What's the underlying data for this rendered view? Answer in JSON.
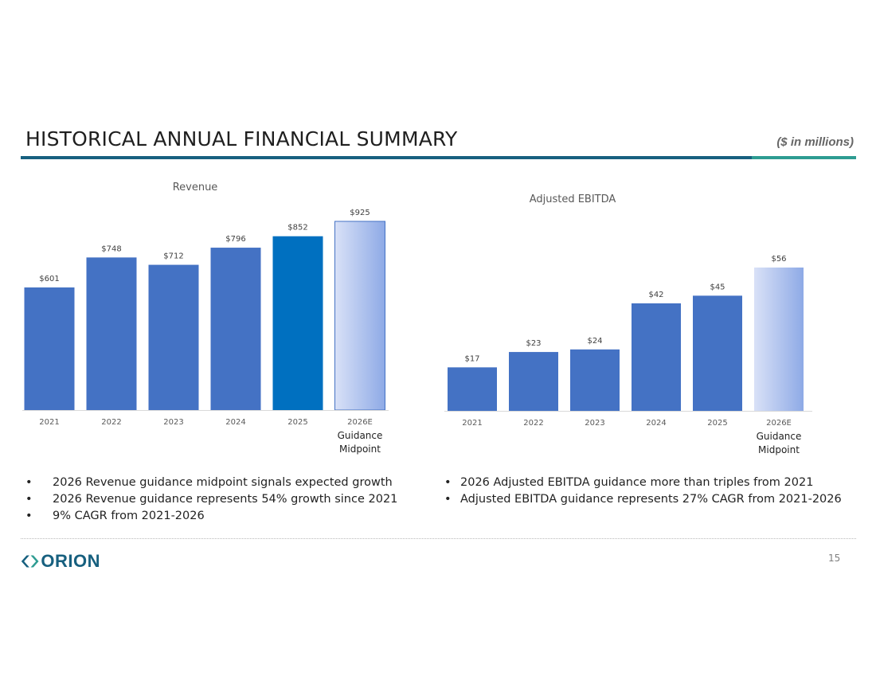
{
  "slide": {
    "title": "HISTORICAL ANNUAL FINANCIAL SUMMARY",
    "units_note": "($ in millions)",
    "page_number": "15",
    "logo_text": "ORION"
  },
  "colors": {
    "bar": "#4472c4",
    "highlight_bar": "#0070c0",
    "guidance_gradient_start": "#d9e1f7",
    "guidance_gradient_end": "#8eaae6",
    "title_rule": "#17607f",
    "accent_rule": "#2e9c92"
  },
  "chart_data": [
    {
      "type": "bar",
      "title": "Revenue",
      "categories": [
        "2021",
        "2022",
        "2023",
        "2024",
        "2025",
        "2026E"
      ],
      "values": [
        601,
        748,
        712,
        796,
        852,
        925
      ],
      "labels": [
        "$601",
        "$748",
        "$712",
        "$796",
        "$852",
        "$925"
      ],
      "category_note": {
        "category": "2026E",
        "lines": [
          "Guidance",
          "Midpoint"
        ]
      },
      "highlight_category": "2025",
      "guidance_category": "2026E",
      "ylim": [
        0,
        925
      ],
      "grid": false,
      "legend": "none"
    },
    {
      "type": "bar",
      "title": "Adjusted EBITDA",
      "categories": [
        "2021",
        "2022",
        "2023",
        "2024",
        "2025",
        "2026E"
      ],
      "values": [
        17,
        23,
        24,
        42,
        45,
        56
      ],
      "labels": [
        "$17",
        "$23",
        "$24",
        "$42",
        "$45",
        "$56"
      ],
      "category_note": {
        "category": "2026E",
        "lines": [
          "Guidance",
          "Midpoint"
        ]
      },
      "guidance_category": "2026E",
      "ylim": [
        0,
        56
      ],
      "grid": false,
      "legend": "none"
    }
  ],
  "bullets": {
    "left": [
      "2026 Revenue guidance midpoint signals expected growth",
      "2026 Revenue guidance represents 54% growth since 2021",
      "9% CAGR from 2021-2026"
    ],
    "right": [
      "2026 Adjusted EBITDA guidance more than triples from 2021",
      "Adjusted EBITDA guidance represents 27% CAGR from 2021-2026"
    ]
  }
}
